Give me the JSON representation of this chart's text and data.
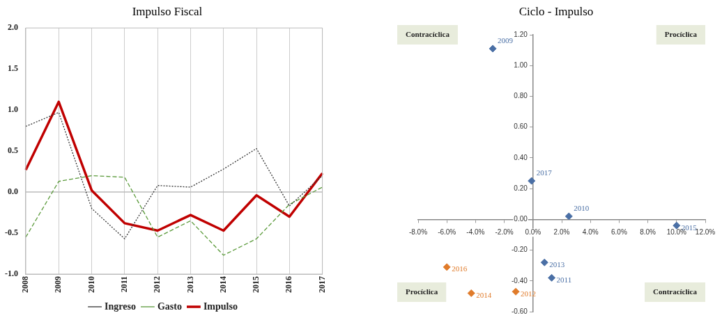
{
  "chart_data": [
    {
      "type": "line",
      "title": "Impulso Fiscal",
      "categories": [
        "2008",
        "2009",
        "2010",
        "2011",
        "2012",
        "2013",
        "2014",
        "2015",
        "2016",
        "2017"
      ],
      "series": [
        {
          "name": "Ingreso",
          "color": "#333333",
          "line_style": "dotted",
          "values": [
            0.8,
            0.97,
            -0.2,
            -0.57,
            0.08,
            0.06,
            0.28,
            0.53,
            -0.17,
            0.2
          ]
        },
        {
          "name": "Gasto",
          "color": "#5a9a3a",
          "line_style": "dashed",
          "values": [
            -0.55,
            0.13,
            0.2,
            0.18,
            -0.55,
            -0.35,
            -0.77,
            -0.57,
            -0.15,
            0.06
          ]
        },
        {
          "name": "Impulso",
          "color": "#c00000",
          "line_style": "solid",
          "values": [
            0.27,
            1.1,
            0.02,
            -0.38,
            -0.47,
            -0.28,
            -0.47,
            -0.04,
            -0.3,
            0.23
          ]
        }
      ],
      "ylim": [
        -1,
        2
      ],
      "yticks": [
        {
          "value": -1,
          "label": "-1.0"
        },
        {
          "value": -0.5,
          "label": "-0.5"
        },
        {
          "value": 0,
          "label": "0.0"
        },
        {
          "value": 0.5,
          "label": "0.5"
        },
        {
          "value": 1,
          "label": "1.0"
        },
        {
          "value": 1.5,
          "label": "1.5"
        },
        {
          "value": 2,
          "label": "2.0"
        }
      ],
      "ref_lines": [
        {
          "axis": "y",
          "value": 0,
          "color": "#bbbbbb"
        }
      ],
      "grid": "x",
      "legend": "bottom",
      "marker": "none"
    },
    {
      "type": "scatter",
      "title": "Ciclo - Impulso",
      "series": [
        {
          "color": "#4a6fa5",
          "x": [
            -2.8,
            -0.1,
            2.5,
            10.0,
            0.8,
            1.3
          ],
          "values": [
            1.11,
            0.25,
            0.02,
            -0.04,
            -0.28,
            -0.38
          ]
        },
        {
          "color": "#e07b2a",
          "x": [
            -6.0,
            -4.3,
            -1.2
          ],
          "values": [
            -0.31,
            -0.48,
            -0.47
          ]
        }
      ],
      "xlim": [
        -8,
        12
      ],
      "xticks": [
        {
          "value": -8,
          "label": "-8.0%"
        },
        {
          "value": -6,
          "label": "-6.0%"
        },
        {
          "value": -4,
          "label": "-4.0%"
        },
        {
          "value": -2,
          "label": "-2.0%"
        },
        {
          "value": 0,
          "label": "0.0%"
        },
        {
          "value": 2,
          "label": "2.0%"
        },
        {
          "value": 4,
          "label": "4.0%"
        },
        {
          "value": 6,
          "label": "6.0%"
        },
        {
          "value": 8,
          "label": "8.0%"
        },
        {
          "value": 10,
          "label": "10.0%"
        },
        {
          "value": 12,
          "label": "12.0%"
        }
      ],
      "ylim": [
        -0.6,
        1.2
      ],
      "yticks": [
        {
          "value": -0.6,
          "label": "-0.60"
        },
        {
          "value": -0.4,
          "label": "-0.40"
        },
        {
          "value": -0.2,
          "label": "-0.20"
        },
        {
          "value": 0,
          "label": "0.00"
        },
        {
          "value": 0.2,
          "label": "0.20"
        },
        {
          "value": 0.4,
          "label": "0.40"
        },
        {
          "value": 0.6,
          "label": "0.60"
        },
        {
          "value": 0.8,
          "label": "0.80"
        },
        {
          "value": 1,
          "label": "1.00"
        },
        {
          "value": 1.2,
          "label": "1.20"
        }
      ],
      "annotations": [
        "Contracíclica",
        "Procíclica",
        "Procíclica",
        "Contracíclica",
        {
          "text": "2009",
          "x": -2.8,
          "y": 1.11
        },
        {
          "text": "2017",
          "x": -0.1,
          "y": 0.25
        },
        {
          "text": "2010",
          "x": 2.5,
          "y": 0.02
        },
        {
          "text": "2015",
          "x": 10.0,
          "y": -0.04
        },
        {
          "text": "2013",
          "x": 0.8,
          "y": -0.28
        },
        {
          "text": "2011",
          "x": 1.3,
          "y": -0.38
        },
        {
          "text": "2016",
          "x": -6.0,
          "y": -0.31
        },
        {
          "text": "2014",
          "x": -4.3,
          "y": -0.48
        },
        {
          "text": "2012",
          "x": -1.2,
          "y": -0.47
        }
      ],
      "grid": false,
      "legend": false,
      "marker": "diamond"
    }
  ]
}
